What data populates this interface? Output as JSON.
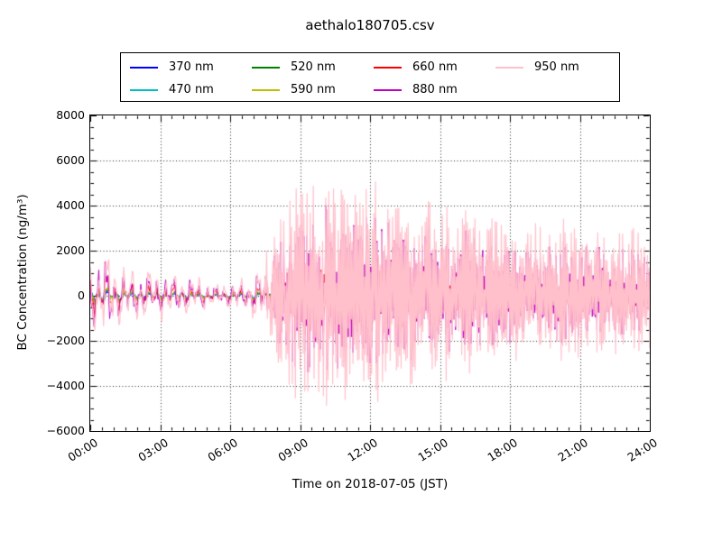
{
  "figure": {
    "title": "aethalo180705.csv"
  },
  "chart_data": {
    "type": "line",
    "title": "aethalo180705.csv",
    "xlabel": "Time on 2018-07-05 (JST)",
    "ylabel": "BC Concentration (ng/m³)",
    "xlim_hours": [
      0,
      24
    ],
    "ylim": [
      -6000,
      8000
    ],
    "x_major_tick_hours": [
      0,
      3,
      6,
      9,
      12,
      15,
      18,
      21,
      24
    ],
    "x_tick_labels": [
      "00:00",
      "03:00",
      "06:00",
      "09:00",
      "12:00",
      "15:00",
      "18:00",
      "21:00",
      "24:00"
    ],
    "x_minor_step_hours": 0.5,
    "y_major_step": 2000,
    "y_minor_step": 500,
    "y_tick_labels": [
      "8000",
      "6000",
      "4000",
      "2000",
      "0",
      "−2000",
      "−4000",
      "−6000"
    ],
    "grid": {
      "style": "dotted",
      "color": "#000000"
    },
    "frame_color": "#000000",
    "background_color": "#ffffff",
    "legend": {
      "position": "top-center",
      "rows": 2,
      "order": "column-major"
    },
    "series": [
      {
        "label": "370 nm",
        "color": "#0000FF",
        "scale": 0.13,
        "phase": 0.0
      },
      {
        "label": "470 nm",
        "color": "#00BFBF",
        "scale": 0.16,
        "phase": 0.12
      },
      {
        "label": "520 nm",
        "color": "#008000",
        "scale": 0.19,
        "phase": 0.22
      },
      {
        "label": "590 nm",
        "color": "#BFBF00",
        "scale": 0.22,
        "phase": 0.32
      },
      {
        "label": "660 nm",
        "color": "#FF0000",
        "scale": 0.45,
        "phase": 0.55
      },
      {
        "label": "880 nm",
        "color": "#BF00BF",
        "scale": 0.72,
        "phase": 0.95
      },
      {
        "label": "950 nm",
        "color": "#FFC0CB",
        "scale": 1.0,
        "phase": 0.4
      }
    ],
    "series_synthesis": {
      "sample_minutes": 2,
      "seed": 7,
      "smooth_until_hour": 7.2,
      "spiky_blend_hours": 0.8,
      "neg_scale": 0.9,
      "envelope_hours": [
        0,
        0.6,
        1.5,
        3,
        4.5,
        5.5,
        6.5,
        7.2,
        8,
        9,
        9.6,
        10.2,
        11,
        11.8,
        12.5,
        13.5,
        14.5,
        15.5,
        16.5,
        17.5,
        18.5,
        19.5,
        20.5,
        21.5,
        22.5,
        23.5,
        24
      ],
      "envelope_amplitude": [
        2300,
        3000,
        1700,
        1500,
        1100,
        700,
        900,
        1700,
        3600,
        6600,
        5200,
        6300,
        5600,
        6200,
        5400,
        4700,
        4600,
        4400,
        4200,
        3500,
        3300,
        3400,
        3600,
        3200,
        3100,
        3300,
        3100
      ]
    }
  }
}
